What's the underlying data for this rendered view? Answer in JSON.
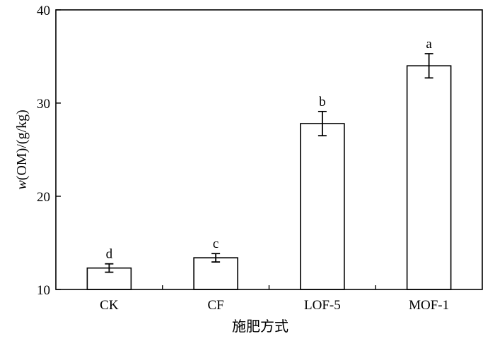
{
  "chart_data": {
    "type": "bar",
    "xlabel": "施肥方式",
    "ylabel_var": "w",
    "ylabel_rest": "(OM)/(g/kg)",
    "categories": [
      "CK",
      "CF",
      "LOF-5",
      "MOF-1"
    ],
    "values": [
      12.3,
      13.4,
      27.8,
      34.0
    ],
    "errors": [
      0.45,
      0.45,
      1.3,
      1.3
    ],
    "significance": [
      "d",
      "c",
      "b",
      "a"
    ],
    "ylim": [
      10,
      40
    ],
    "yticks": [
      10,
      20,
      30,
      40
    ],
    "ytick_labels": [
      "10",
      "20",
      "30",
      "40"
    ],
    "grid": false,
    "legend": "none"
  }
}
